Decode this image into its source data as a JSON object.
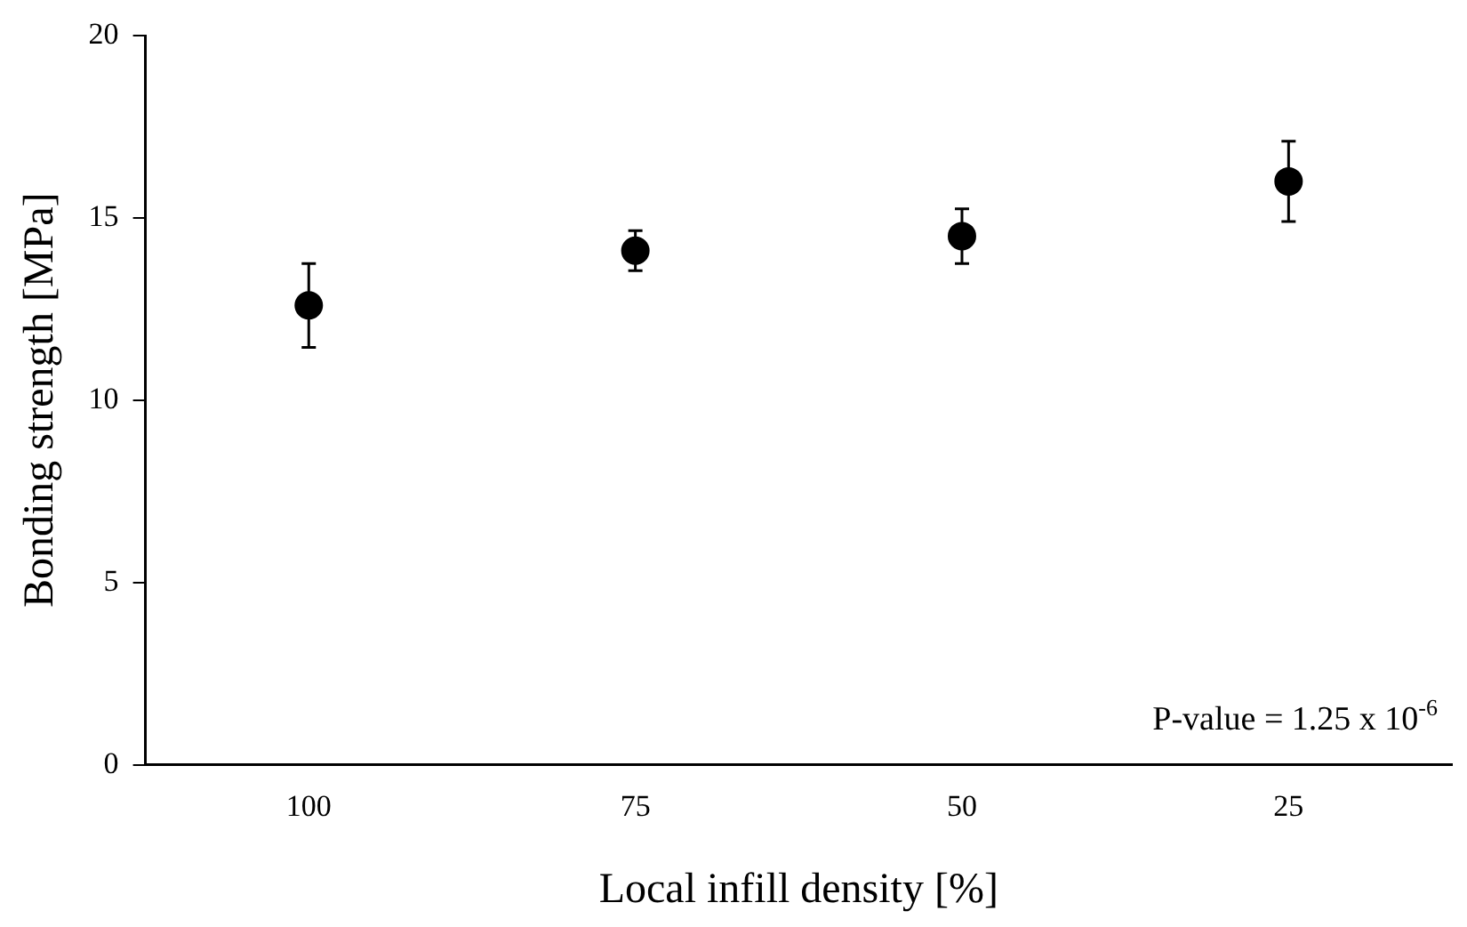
{
  "chart_data": {
    "type": "scatter",
    "xlabel": "Local infill density [%]",
    "ylabel": "Bonding strength [MPa]",
    "categories": [
      "100",
      "75",
      "50",
      "25"
    ],
    "series": [
      {
        "color": "#000000",
        "values": [
          12.6,
          14.1,
          14.5,
          16.0
        ],
        "errors": [
          1.15,
          0.55,
          0.75,
          1.1
        ]
      }
    ],
    "ylim": [
      0,
      20
    ],
    "yticks": [
      0,
      5,
      10,
      15,
      20
    ],
    "grid": false,
    "legend": false,
    "marker": "circle",
    "annotations": [
      "P-value = 1.25 x 10$^{-6}$"
    ]
  }
}
